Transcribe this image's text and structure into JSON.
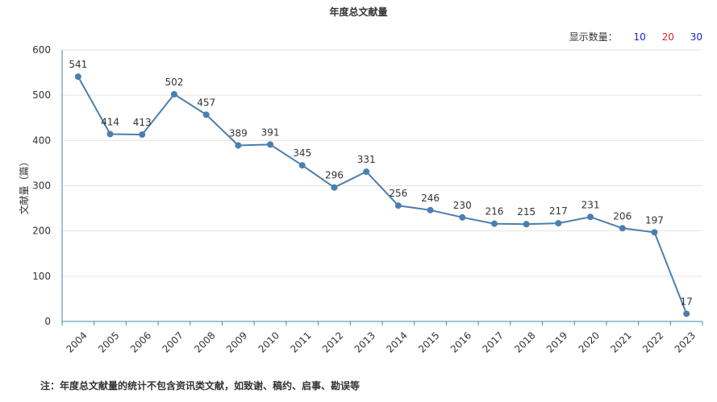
{
  "page": {
    "title": "年度总文献量",
    "count_switch": {
      "label": "显示数量：",
      "options": [
        "10",
        "20",
        "30"
      ]
    },
    "footnote": "注：年度总文献量的统计不包含资讯类文献，如致谢、稿约、启事、勘误等"
  },
  "chart_data": {
    "type": "line",
    "title": "年度总文献量",
    "xlabel": "",
    "ylabel": "文献量（篇）",
    "ylim": [
      0,
      600
    ],
    "yticks": [
      0,
      100,
      200,
      300,
      400,
      500,
      600
    ],
    "grid": true,
    "legend": "none",
    "color": "#4a7fb0",
    "categories": [
      "2004",
      "2005",
      "2006",
      "2007",
      "2008",
      "2009",
      "2010",
      "2011",
      "2012",
      "2013",
      "2014",
      "2015",
      "2016",
      "2017",
      "2018",
      "2019",
      "2020",
      "2021",
      "2022",
      "2023"
    ],
    "values": [
      541,
      414,
      413,
      502,
      457,
      389,
      391,
      345,
      296,
      331,
      256,
      246,
      230,
      216,
      215,
      217,
      231,
      206,
      197,
      17
    ]
  }
}
